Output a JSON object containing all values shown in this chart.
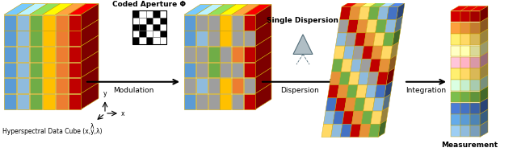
{
  "bg_color": "#ffffff",
  "text_color": "#000000",
  "cube_colors": [
    "#5b9bd5",
    "#8fbbdd",
    "#70ad47",
    "#ffc000",
    "#ed7d31",
    "#c00000"
  ],
  "gray_color": "#9e9e9e",
  "edge_color": "#c8a000",
  "label_hyperspectral": "Hyperspectral Data Cube (x,y,λ)",
  "label_modulation": "Modulation",
  "label_coded": "Coded Aperture Φ",
  "label_dispersion": "Dispersion",
  "label_single_disp": "Single Dispersion",
  "label_integration": "Integration",
  "label_measurement": "Measurement",
  "meas_row_colors": [
    "#c00000",
    "#e69138",
    "#ffd966",
    "#ffffb3",
    "#ffb3c6",
    "#ffd966",
    "#c6efce",
    "#70ad47",
    "#4472c4",
    "#5b9bd5",
    "#8fbbdd"
  ],
  "disp_grid": [
    [
      "#c00000",
      "#e69138",
      "#ffd966",
      "#70ad47",
      "#8fbbdd",
      "#4472c4"
    ],
    [
      "#9e9e9e",
      "#c00000",
      "#e69138",
      "#ffd966",
      "#70ad47",
      "#8fbbdd"
    ],
    [
      "#8fbbdd",
      "#9e9e9e",
      "#c00000",
      "#e69138",
      "#ffd966",
      "#70ad47"
    ],
    [
      "#ffd966",
      "#8fbbdd",
      "#9e9e9e",
      "#c00000",
      "#e69138",
      "#ffd966"
    ],
    [
      "#70ad47",
      "#ffd966",
      "#8fbbdd",
      "#9e9e9e",
      "#c00000",
      "#e69138"
    ],
    [
      "#e69138",
      "#70ad47",
      "#ffd966",
      "#8fbbdd",
      "#9e9e9e",
      "#c00000"
    ],
    [
      "#c00000",
      "#e69138",
      "#70ad47",
      "#ffd966",
      "#8fbbdd",
      "#4472c4"
    ],
    [
      "#4472c4",
      "#c00000",
      "#e69138",
      "#70ad47",
      "#ffd966",
      "#8fbbdd"
    ],
    [
      "#8fbbdd",
      "#4472c4",
      "#c00000",
      "#e69138",
      "#70ad47",
      "#ffd966"
    ],
    [
      "#ffd966",
      "#8fbbdd",
      "#4472c4",
      "#c00000",
      "#e69138",
      "#70ad47"
    ]
  ],
  "ca_pattern": [
    [
      1,
      0,
      0,
      1,
      0
    ],
    [
      0,
      0,
      1,
      0,
      1
    ],
    [
      1,
      1,
      0,
      1,
      0
    ],
    [
      0,
      1,
      0,
      0,
      1
    ],
    [
      1,
      0,
      1,
      0,
      0
    ]
  ],
  "mod_mask": [
    [
      1,
      0,
      0,
      1,
      0,
      1
    ],
    [
      1,
      1,
      0,
      1,
      0,
      0
    ],
    [
      0,
      0,
      1,
      0,
      1,
      1
    ],
    [
      1,
      0,
      1,
      0,
      0,
      1
    ],
    [
      0,
      1,
      0,
      1,
      1,
      0
    ]
  ]
}
